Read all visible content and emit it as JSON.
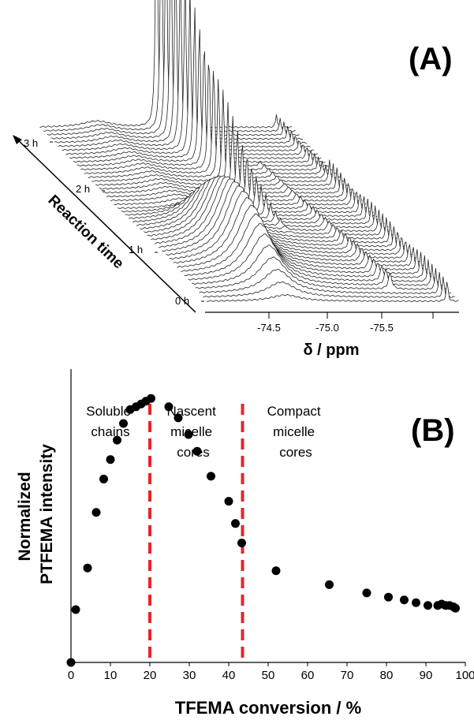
{
  "panel_a": {
    "label": "(A)",
    "time_labels": [
      "0 h",
      "1 h",
      "2 h",
      "3 h"
    ],
    "time_axis_label": "Reaction time",
    "x_ticks": [
      "-74.5",
      "-75.0",
      "-75.5"
    ],
    "x_label": "δ / ppm"
  },
  "panel_b": {
    "label": "(B)",
    "regions": [
      {
        "lines": [
          "Soluble",
          "chains"
        ]
      },
      {
        "lines": [
          "Nascent",
          "micelle",
          "cores"
        ]
      },
      {
        "lines": [
          "Compact",
          "micelle",
          "cores"
        ]
      }
    ],
    "divider_color": "#e8242a"
  },
  "chart_data": [
    {
      "type": "line",
      "title": "(A)",
      "xlabel": "δ / ppm",
      "x_ticks": [
        -74.5,
        -75.0,
        -75.5
      ],
      "time_ticks": [
        "0 h",
        "1 h",
        "2 h",
        "3 h"
      ],
      "time_axis_label": "Reaction time",
      "n_spectra": 46,
      "style": "waterfall stack of 19F NMR spectra"
    },
    {
      "type": "scatter",
      "title": "(B)",
      "xlabel": "TFEMA conversion / %",
      "ylabel": "Normalized PTFEMA intensity",
      "xlim": [
        0,
        100
      ],
      "x_ticks": [
        0,
        10,
        20,
        30,
        40,
        50,
        60,
        70,
        80,
        90,
        100
      ],
      "ylim": [
        0,
        1.05
      ],
      "dividers_x": [
        20,
        43.5
      ],
      "series": [
        {
          "x": [
            0,
            1.2,
            4.2,
            6.4,
            8.3,
            10.0,
            11.7,
            13.3,
            15.0,
            16.5,
            17.8,
            19.0,
            20.3,
            24.8,
            27.2,
            29.8,
            32.0,
            35.5,
            40.0,
            41.7,
            43.3,
            52.0,
            65.5,
            75.0,
            80.5,
            84.5,
            87.5,
            90.5,
            93.0,
            94.0,
            95.0,
            96.0,
            97.0,
            97.5
          ],
          "y": [
            0.0,
            0.19,
            0.34,
            0.54,
            0.66,
            0.73,
            0.8,
            0.86,
            0.91,
            0.92,
            0.93,
            0.94,
            0.95,
            0.92,
            0.88,
            0.82,
            0.76,
            0.67,
            0.58,
            0.5,
            0.43,
            0.33,
            0.28,
            0.25,
            0.235,
            0.225,
            0.215,
            0.205,
            0.205,
            0.21,
            0.205,
            0.205,
            0.2,
            0.195
          ]
        }
      ]
    }
  ]
}
